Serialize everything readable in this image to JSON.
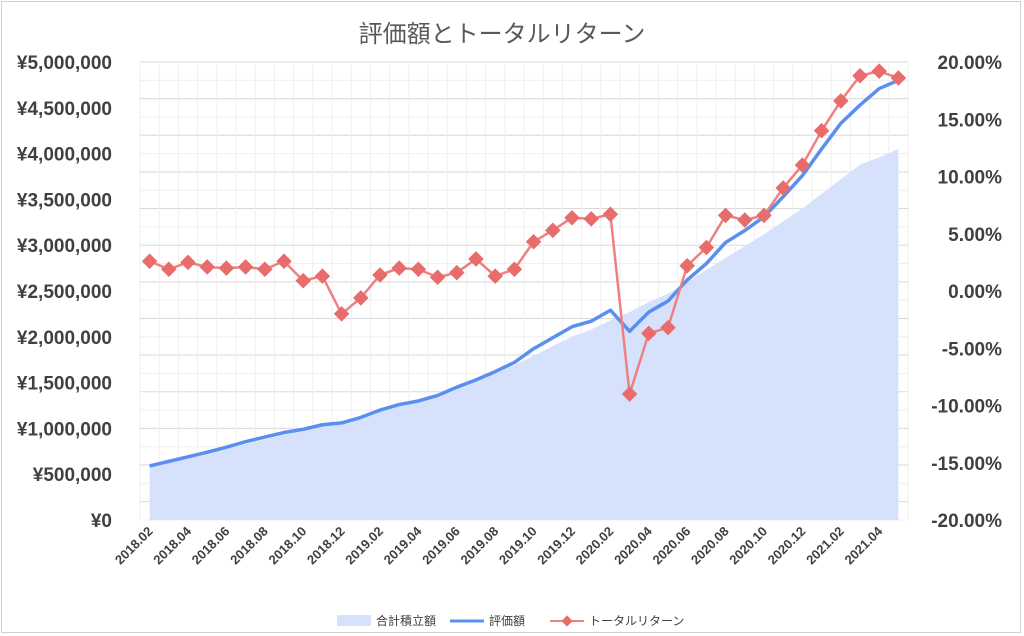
{
  "chart_data": {
    "type": "line",
    "title": "評価額とトータルリターン",
    "x": [
      "2018.02",
      "2018.03",
      "2018.04",
      "2018.05",
      "2018.06",
      "2018.07",
      "2018.08",
      "2018.09",
      "2018.10",
      "2018.11",
      "2018.12",
      "2019.01",
      "2019.02",
      "2019.03",
      "2019.04",
      "2019.05",
      "2019.06",
      "2019.07",
      "2019.08",
      "2019.09",
      "2019.10",
      "2019.11",
      "2019.12",
      "2020.01",
      "2020.02",
      "2020.03",
      "2020.04",
      "2020.05",
      "2020.06",
      "2020.07",
      "2020.08",
      "2020.09",
      "2020.10",
      "2020.11",
      "2020.12",
      "2021.01",
      "2021.02",
      "2021.03",
      "2021.04",
      "2021.05"
    ],
    "x_tick_labels": [
      "2018.02",
      "2018.04",
      "2018.06",
      "2018.08",
      "2018.10",
      "2018.12",
      "2019.02",
      "2019.04",
      "2019.06",
      "2019.08",
      "2019.10",
      "2019.12",
      "2020.02",
      "2020.04",
      "2020.06",
      "2020.08",
      "2020.10",
      "2020.12",
      "2021.02",
      "2021.04"
    ],
    "series": [
      {
        "name": "合計積立額",
        "type": "area",
        "axis": "left",
        "color": "#d6e2fb",
        "values": [
          580000,
          630000,
          680000,
          725000,
          775000,
          830000,
          880000,
          930000,
          980000,
          1030000,
          1050000,
          1100000,
          1180000,
          1240000,
          1290000,
          1350000,
          1440000,
          1520000,
          1600000,
          1690000,
          1790000,
          1900000,
          2000000,
          2080000,
          2180000,
          2270000,
          2380000,
          2470000,
          2600000,
          2730000,
          2860000,
          2990000,
          3120000,
          3260000,
          3400000,
          3560000,
          3720000,
          3880000,
          3960000,
          4050000
        ]
      },
      {
        "name": "評価額",
        "type": "line",
        "axis": "left",
        "color": "#5b8fef",
        "values": [
          590000,
          640000,
          690000,
          740000,
          795000,
          855000,
          905000,
          955000,
          990000,
          1040000,
          1060000,
          1120000,
          1200000,
          1260000,
          1300000,
          1360000,
          1450000,
          1530000,
          1620000,
          1720000,
          1870000,
          1990000,
          2110000,
          2170000,
          2290000,
          2060000,
          2270000,
          2390000,
          2620000,
          2800000,
          3030000,
          3160000,
          3310000,
          3530000,
          3760000,
          4050000,
          4330000,
          4530000,
          4710000,
          4800000
        ]
      },
      {
        "name": "トータルリターン",
        "type": "line",
        "axis": "right",
        "color": "#f08080",
        "marker_color": "#e86c6c",
        "values": [
          2.6,
          1.9,
          2.5,
          2.1,
          2.0,
          2.1,
          1.9,
          2.6,
          0.9,
          1.3,
          -2.0,
          -0.6,
          1.4,
          2.0,
          1.9,
          1.2,
          1.6,
          2.8,
          1.3,
          1.9,
          4.3,
          5.3,
          6.4,
          6.3,
          6.7,
          -9.0,
          -3.7,
          -3.2,
          2.2,
          3.8,
          6.6,
          6.2,
          6.6,
          9.0,
          11.0,
          14.0,
          16.6,
          18.8,
          19.2,
          18.6
        ]
      }
    ],
    "y_left": {
      "lim": [
        0,
        5000000
      ],
      "ticks": [
        "¥0",
        "¥500,000",
        "¥1,000,000",
        "¥1,500,000",
        "¥2,000,000",
        "¥2,500,000",
        "¥3,000,000",
        "¥3,500,000",
        "¥4,000,000",
        "¥4,500,000",
        "¥5,000,000"
      ]
    },
    "y_right": {
      "lim": [
        -20,
        20
      ],
      "ticks": [
        "-20.00%",
        "-15.00%",
        "-10.00%",
        "-5.00%",
        "0.00%",
        "5.00%",
        "10.00%",
        "15.00%",
        "20.00%"
      ]
    },
    "grid": true,
    "legend_position": "bottom"
  }
}
